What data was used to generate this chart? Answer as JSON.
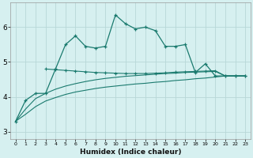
{
  "xlabel": "Humidex (Indice chaleur)",
  "background_color": "#d6f0f0",
  "grid_color": "#b8d8d8",
  "line_color": "#1a7a6e",
  "x_values": [
    0,
    1,
    2,
    3,
    4,
    5,
    6,
    7,
    8,
    9,
    10,
    11,
    12,
    13,
    14,
    15,
    16,
    17,
    18,
    19,
    20,
    21,
    22,
    23
  ],
  "line1": [
    3.3,
    3.9,
    4.1,
    4.1,
    4.8,
    5.5,
    5.75,
    5.45,
    5.4,
    5.45,
    6.35,
    6.1,
    5.95,
    6.0,
    5.9,
    5.45,
    5.45,
    5.5,
    4.7,
    4.95,
    4.6,
    4.6,
    4.6,
    4.6
  ],
  "line2_x": [
    3,
    4,
    5,
    6,
    7,
    8,
    9,
    10,
    11,
    12,
    13,
    14,
    15,
    16,
    17,
    18,
    19,
    20,
    21,
    22,
    23
  ],
  "line2_y": [
    4.8,
    4.78,
    4.76,
    4.74,
    4.72,
    4.7,
    4.69,
    4.68,
    4.67,
    4.67,
    4.67,
    4.68,
    4.69,
    4.71,
    4.72,
    4.73,
    4.74,
    4.75,
    4.6,
    4.6,
    4.6
  ],
  "line3": [
    3.3,
    3.5,
    3.72,
    3.88,
    3.98,
    4.07,
    4.14,
    4.19,
    4.24,
    4.28,
    4.31,
    4.34,
    4.37,
    4.39,
    4.42,
    4.44,
    4.47,
    4.49,
    4.52,
    4.54,
    4.57,
    4.6,
    4.6,
    4.6
  ],
  "line4": [
    3.3,
    3.65,
    3.95,
    4.1,
    4.22,
    4.31,
    4.38,
    4.44,
    4.49,
    4.53,
    4.56,
    4.59,
    4.61,
    4.63,
    4.65,
    4.67,
    4.68,
    4.7,
    4.71,
    4.72,
    4.73,
    4.6,
    4.6,
    4.6
  ],
  "ylim": [
    2.8,
    6.7
  ],
  "yticks": [
    3,
    4,
    5,
    6
  ],
  "xlim": [
    -0.5,
    23.5
  ]
}
